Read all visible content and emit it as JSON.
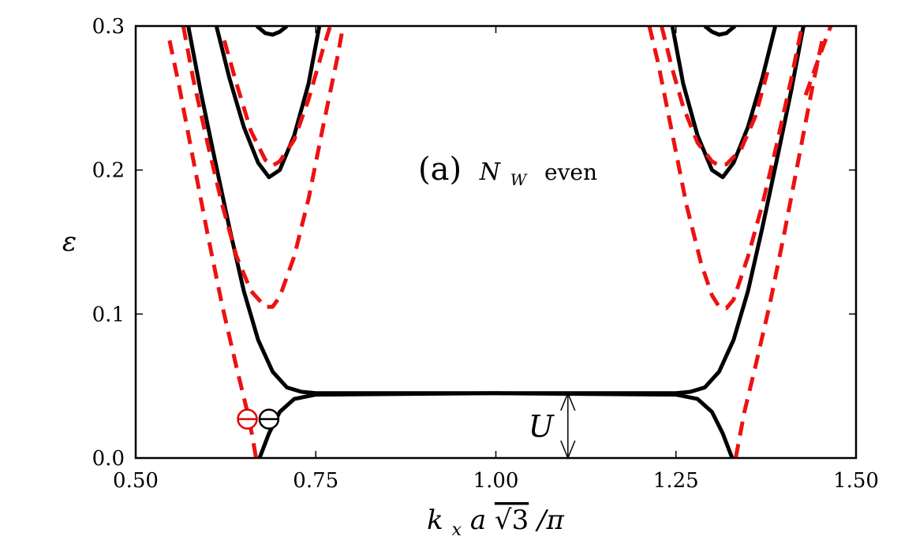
{
  "chart_data": {
    "type": "line",
    "xlabel_parts": {
      "k": "k",
      "sub": "x",
      "a": "a",
      "sqrt": "√3",
      "div": "/π"
    },
    "ylabel": "ε",
    "xlim": [
      0.5,
      1.5
    ],
    "ylim": [
      0.0,
      0.3
    ],
    "xticks": [
      "0.50",
      "0.75",
      "1.00",
      "1.25",
      "1.50"
    ],
    "yticks": [
      "0.0",
      "0.1",
      "0.2",
      "0.3"
    ],
    "panel_label": "(a)",
    "panel_N": "N",
    "panel_sub": "W",
    "panel_even": "even",
    "gap_label": "U",
    "gap_arrow": {
      "x": 1.1,
      "y_from": 0.0,
      "y_to": 0.045
    },
    "markers": [
      {
        "x": 0.655,
        "y": 0.027,
        "color": "#e00000"
      },
      {
        "x": 0.685,
        "y": 0.027,
        "color": "#000000"
      }
    ],
    "colors": {
      "solid": "#000000",
      "dashed": "#ee1111"
    },
    "series": [
      {
        "style": "solid",
        "values": [
          [
            0.573,
            0.3
          ],
          [
            0.59,
            0.255
          ],
          [
            0.61,
            0.207
          ],
          [
            0.63,
            0.16
          ],
          [
            0.65,
            0.116
          ],
          [
            0.67,
            0.082
          ],
          [
            0.69,
            0.06
          ],
          [
            0.71,
            0.049
          ],
          [
            0.73,
            0.046
          ],
          [
            0.75,
            0.045
          ],
          [
            1.0,
            0.045
          ],
          [
            1.25,
            0.045
          ],
          [
            1.27,
            0.046
          ],
          [
            1.29,
            0.049
          ],
          [
            1.31,
            0.06
          ],
          [
            1.33,
            0.082
          ],
          [
            1.35,
            0.116
          ],
          [
            1.37,
            0.16
          ],
          [
            1.39,
            0.207
          ],
          [
            1.41,
            0.255
          ],
          [
            1.427,
            0.3
          ]
        ]
      },
      {
        "style": "solid",
        "values": [
          [
            0.672,
            0.0
          ],
          [
            0.685,
            0.017
          ],
          [
            0.7,
            0.032
          ],
          [
            0.72,
            0.041
          ],
          [
            0.75,
            0.044
          ],
          [
            1.0,
            0.045
          ],
          [
            1.25,
            0.044
          ],
          [
            1.28,
            0.041
          ],
          [
            1.3,
            0.032
          ],
          [
            1.315,
            0.017
          ],
          [
            1.328,
            0.0
          ]
        ]
      },
      {
        "style": "solid",
        "values": [
          [
            0.612,
            0.3
          ],
          [
            0.63,
            0.264
          ],
          [
            0.65,
            0.23
          ],
          [
            0.67,
            0.205
          ],
          [
            0.685,
            0.195
          ],
          [
            0.7,
            0.2
          ],
          [
            0.72,
            0.224
          ],
          [
            0.74,
            0.26
          ],
          [
            0.755,
            0.3
          ]
        ]
      },
      {
        "style": "solid",
        "values": [
          [
            1.245,
            0.3
          ],
          [
            1.26,
            0.26
          ],
          [
            1.28,
            0.224
          ],
          [
            1.3,
            0.2
          ],
          [
            1.315,
            0.195
          ],
          [
            1.33,
            0.205
          ],
          [
            1.35,
            0.23
          ],
          [
            1.37,
            0.264
          ],
          [
            1.388,
            0.3
          ]
        ]
      },
      {
        "style": "solid",
        "values": [
          [
            0.668,
            0.3
          ],
          [
            0.68,
            0.295
          ],
          [
            0.69,
            0.294
          ],
          [
            0.7,
            0.296
          ],
          [
            0.71,
            0.3
          ]
        ]
      },
      {
        "style": "solid",
        "values": [
          [
            1.29,
            0.3
          ],
          [
            1.3,
            0.296
          ],
          [
            1.31,
            0.294
          ],
          [
            1.32,
            0.295
          ],
          [
            1.332,
            0.3
          ]
        ]
      },
      {
        "style": "dashed",
        "values": [
          [
            0.547,
            0.29
          ],
          [
            0.56,
            0.259
          ],
          [
            0.58,
            0.207
          ],
          [
            0.6,
            0.155
          ],
          [
            0.62,
            0.106
          ],
          [
            0.64,
            0.063
          ],
          [
            0.655,
            0.032
          ],
          [
            0.662,
            0.015
          ],
          [
            0.667,
            0.0
          ]
        ]
      },
      {
        "style": "dashed",
        "values": [
          [
            0.566,
            0.3
          ],
          [
            0.58,
            0.263
          ],
          [
            0.6,
            0.218
          ],
          [
            0.62,
            0.176
          ],
          [
            0.64,
            0.14
          ],
          [
            0.66,
            0.116
          ],
          [
            0.68,
            0.105
          ],
          [
            0.69,
            0.105
          ],
          [
            0.7,
            0.112
          ],
          [
            0.72,
            0.14
          ],
          [
            0.74,
            0.18
          ],
          [
            0.76,
            0.23
          ],
          [
            0.78,
            0.278
          ],
          [
            0.788,
            0.3
          ]
        ]
      },
      {
        "style": "dashed",
        "values": [
          [
            0.623,
            0.29
          ],
          [
            0.64,
            0.26
          ],
          [
            0.66,
            0.227
          ],
          [
            0.68,
            0.207
          ],
          [
            0.69,
            0.203
          ],
          [
            0.7,
            0.206
          ],
          [
            0.72,
            0.221
          ],
          [
            0.74,
            0.249
          ],
          [
            0.76,
            0.284
          ],
          [
            0.77,
            0.3
          ]
        ]
      },
      {
        "style": "dashed",
        "values": [
          [
            1.213,
            0.3
          ],
          [
            1.225,
            0.275
          ],
          [
            1.245,
            0.225
          ],
          [
            1.265,
            0.175
          ],
          [
            1.285,
            0.135
          ],
          [
            1.3,
            0.113
          ],
          [
            1.31,
            0.105
          ],
          [
            1.32,
            0.104
          ],
          [
            1.33,
            0.11
          ],
          [
            1.35,
            0.14
          ],
          [
            1.37,
            0.176
          ],
          [
            1.39,
            0.218
          ],
          [
            1.41,
            0.263
          ],
          [
            1.425,
            0.3
          ]
        ]
      },
      {
        "style": "dashed",
        "values": [
          [
            1.23,
            0.3
          ],
          [
            1.245,
            0.27
          ],
          [
            1.26,
            0.244
          ],
          [
            1.28,
            0.219
          ],
          [
            1.3,
            0.206
          ],
          [
            1.31,
            0.203
          ],
          [
            1.32,
            0.204
          ],
          [
            1.34,
            0.214
          ],
          [
            1.36,
            0.237
          ],
          [
            1.377,
            0.268
          ]
        ]
      },
      {
        "style": "dashed",
        "values": [
          [
            1.333,
            0.0
          ],
          [
            1.345,
            0.032
          ],
          [
            1.36,
            0.063
          ],
          [
            1.38,
            0.106
          ],
          [
            1.4,
            0.155
          ],
          [
            1.42,
            0.207
          ],
          [
            1.44,
            0.259
          ],
          [
            1.453,
            0.29
          ]
        ]
      },
      {
        "style": "dashed",
        "values": [
          [
            1.43,
            0.252
          ],
          [
            1.45,
            0.28
          ],
          [
            1.465,
            0.3
          ]
        ]
      }
    ]
  }
}
